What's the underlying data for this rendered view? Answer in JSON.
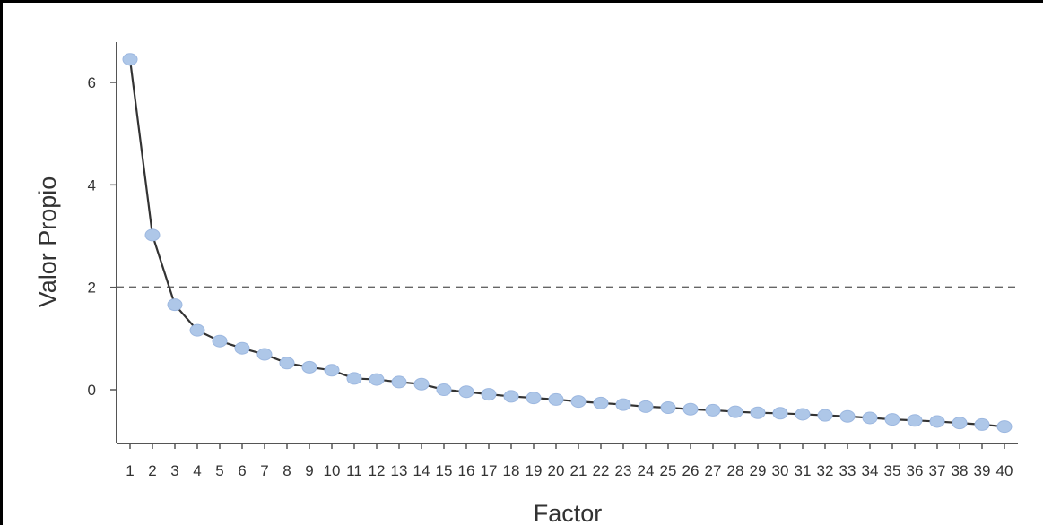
{
  "chart_data": {
    "type": "line",
    "title": "",
    "xlabel": "Factor",
    "ylabel": "Valor Propio",
    "x": [
      1,
      2,
      3,
      4,
      5,
      6,
      7,
      8,
      9,
      10,
      11,
      12,
      13,
      14,
      15,
      16,
      17,
      18,
      19,
      20,
      21,
      22,
      23,
      24,
      25,
      26,
      27,
      28,
      29,
      30,
      31,
      32,
      33,
      34,
      35,
      36,
      37,
      38,
      39,
      40
    ],
    "x_tick_labels": [
      "1",
      "2",
      "3",
      "4",
      "5",
      "6",
      "7",
      "8",
      "9",
      "10",
      "11",
      "12",
      "13",
      "14",
      "15",
      "16",
      "17",
      "18",
      "19",
      "20",
      "21",
      "22",
      "23",
      "24",
      "25",
      "26",
      "27",
      "28",
      "29",
      "30",
      "31",
      "32",
      "33",
      "34",
      "35",
      "36",
      "37",
      "38",
      "39",
      "40"
    ],
    "y_ticks": [
      0,
      2,
      4,
      6
    ],
    "y_tick_labels": [
      "0",
      "2",
      "4",
      "6"
    ],
    "ylim": [
      -1.05,
      6.75
    ],
    "series": [
      {
        "values": [
          6.45,
          3.02,
          1.66,
          1.16,
          0.95,
          0.81,
          0.69,
          0.52,
          0.44,
          0.38,
          0.22,
          0.2,
          0.15,
          0.11,
          0.0,
          -0.04,
          -0.09,
          -0.13,
          -0.16,
          -0.19,
          -0.23,
          -0.26,
          -0.29,
          -0.33,
          -0.35,
          -0.38,
          -0.4,
          -0.43,
          -0.45,
          -0.46,
          -0.48,
          -0.5,
          -0.52,
          -0.55,
          -0.58,
          -0.6,
          -0.62,
          -0.65,
          -0.68,
          -0.72
        ],
        "line_color": "#333333",
        "marker_color": "#aec7e8"
      }
    ],
    "reference_line": {
      "y": 2,
      "style": "dashed",
      "color": "#666666"
    },
    "grid": false,
    "legend": "none"
  }
}
